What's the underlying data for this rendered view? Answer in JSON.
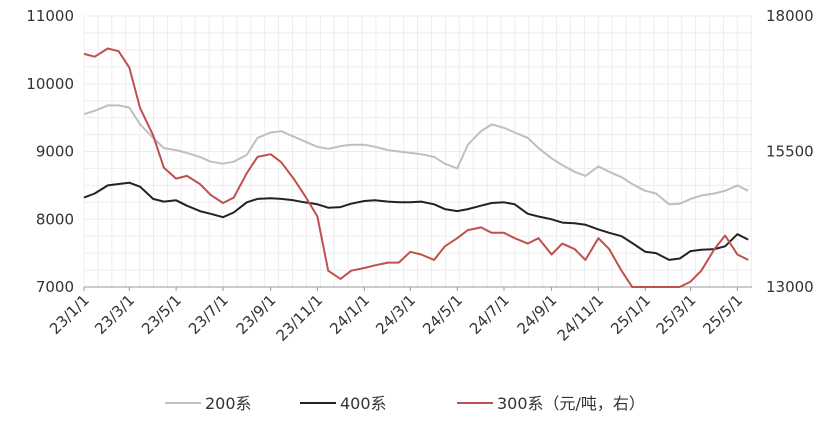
{
  "chart_data": {
    "type": "line",
    "title": "",
    "xlabel": "",
    "ylabel": "",
    "x_ticks": [
      "23/1/1",
      "23/3/1",
      "23/5/1",
      "23/7/1",
      "23/9/1",
      "23/11/1",
      "24/1/1",
      "24/3/1",
      "24/5/1",
      "24/7/1",
      "24/9/1",
      "24/11/1",
      "25/1/1",
      "25/3/1",
      "25/5/1"
    ],
    "ylim_left": [
      7000,
      11000
    ],
    "yticks_left": [
      "7000",
      "8000",
      "9000",
      "10000",
      "11000"
    ],
    "ylim_right": [
      13000,
      18000
    ],
    "yticks_right": [
      "13000",
      "15500",
      "18000"
    ],
    "grid": true,
    "legend_position": "bottom",
    "series": [
      {
        "name": "200系",
        "axis": "left",
        "color": "#bfbfbf",
        "x": [
          "23/1/1",
          "23/1/15",
          "23/2/1",
          "23/2/15",
          "23/3/1",
          "23/3/15",
          "23/4/1",
          "23/4/15",
          "23/5/1",
          "23/5/15",
          "23/6/1",
          "23/6/15",
          "23/7/1",
          "23/7/15",
          "23/8/1",
          "23/8/15",
          "23/9/1",
          "23/9/15",
          "23/10/1",
          "23/10/15",
          "23/11/1",
          "23/11/15",
          "23/12/1",
          "23/12/15",
          "24/1/1",
          "24/1/15",
          "24/2/1",
          "24/2/15",
          "24/3/1",
          "24/3/15",
          "24/4/1",
          "24/4/15",
          "24/5/1",
          "24/5/15",
          "24/6/1",
          "24/6/15",
          "24/7/1",
          "24/7/15",
          "24/8/1",
          "24/8/15",
          "24/9/1",
          "24/9/15",
          "24/10/1",
          "24/10/15",
          "24/11/1",
          "24/11/15",
          "24/12/1",
          "24/12/15",
          "25/1/1",
          "25/1/15",
          "25/2/1",
          "25/2/15",
          "25/3/1",
          "25/3/15",
          "25/4/1",
          "25/4/15",
          "25/5/1",
          "25/5/15"
        ],
        "values": [
          9550,
          9600,
          9680,
          9680,
          9650,
          9400,
          9200,
          9050,
          9020,
          8980,
          8920,
          8850,
          8820,
          8850,
          8950,
          9200,
          9280,
          9300,
          9220,
          9150,
          9070,
          9040,
          9080,
          9100,
          9100,
          9070,
          9020,
          9000,
          8980,
          8960,
          8920,
          8820,
          8750,
          9100,
          9300,
          9400,
          9350,
          9280,
          9200,
          9050,
          8900,
          8800,
          8700,
          8640,
          8780,
          8700,
          8620,
          8520,
          8420,
          8380,
          8220,
          8230,
          8300,
          8350,
          8380,
          8420,
          8500,
          8420
        ]
      },
      {
        "name": "400系",
        "axis": "left",
        "color": "#222222",
        "x": [
          "23/1/1",
          "23/1/15",
          "23/2/1",
          "23/2/15",
          "23/3/1",
          "23/3/15",
          "23/4/1",
          "23/4/15",
          "23/5/1",
          "23/5/15",
          "23/6/1",
          "23/6/15",
          "23/7/1",
          "23/7/15",
          "23/8/1",
          "23/8/15",
          "23/9/1",
          "23/9/15",
          "23/10/1",
          "23/10/15",
          "23/11/1",
          "23/11/15",
          "23/12/1",
          "23/12/15",
          "24/1/1",
          "24/1/15",
          "24/2/1",
          "24/2/15",
          "24/3/1",
          "24/3/15",
          "24/4/1",
          "24/4/15",
          "24/5/1",
          "24/5/15",
          "24/6/1",
          "24/6/15",
          "24/7/1",
          "24/7/15",
          "24/8/1",
          "24/8/15",
          "24/9/1",
          "24/9/15",
          "24/10/1",
          "24/10/15",
          "24/11/1",
          "24/11/15",
          "24/12/1",
          "24/12/15",
          "25/1/1",
          "25/1/15",
          "25/2/1",
          "25/2/15",
          "25/3/1",
          "25/3/15",
          "25/4/1",
          "25/4/15",
          "25/5/1",
          "25/5/15"
        ],
        "values": [
          8320,
          8380,
          8500,
          8520,
          8540,
          8480,
          8300,
          8260,
          8280,
          8200,
          8120,
          8080,
          8030,
          8100,
          8250,
          8300,
          8310,
          8300,
          8280,
          8250,
          8220,
          8170,
          8180,
          8230,
          8270,
          8280,
          8260,
          8250,
          8250,
          8260,
          8220,
          8150,
          8120,
          8150,
          8200,
          8240,
          8250,
          8220,
          8080,
          8040,
          8000,
          7950,
          7940,
          7920,
          7850,
          7800,
          7750,
          7650,
          7520,
          7500,
          7400,
          7420,
          7530,
          7550,
          7560,
          7600,
          7780,
          7700
        ]
      },
      {
        "name": "300系（元/吨，右）",
        "axis": "right",
        "color": "#c0504d",
        "x": [
          "23/1/1",
          "23/1/15",
          "23/2/1",
          "23/2/15",
          "23/3/1",
          "23/3/15",
          "23/4/1",
          "23/4/15",
          "23/5/1",
          "23/5/15",
          "23/6/1",
          "23/6/15",
          "23/7/1",
          "23/7/15",
          "23/8/1",
          "23/8/15",
          "23/9/1",
          "23/9/15",
          "23/10/1",
          "23/10/15",
          "23/11/1",
          "23/11/15",
          "23/12/1",
          "23/12/15",
          "24/1/1",
          "24/1/15",
          "24/2/1",
          "24/2/15",
          "24/3/1",
          "24/3/15",
          "24/4/1",
          "24/4/15",
          "24/5/1",
          "24/5/15",
          "24/6/1",
          "24/6/15",
          "24/7/1",
          "24/7/15",
          "24/8/1",
          "24/8/15",
          "24/9/1",
          "24/9/15",
          "24/10/1",
          "24/10/15",
          "24/11/1",
          "24/11/15",
          "24/12/1",
          "24/12/15",
          "25/1/1",
          "25/1/15",
          "25/2/1",
          "25/2/15",
          "25/3/1",
          "25/3/15",
          "25/4/1",
          "25/4/15",
          "25/5/1",
          "25/5/15"
        ],
        "values": [
          17300,
          17250,
          17400,
          17350,
          17050,
          16300,
          15800,
          15200,
          15000,
          15050,
          14900,
          14700,
          14550,
          14650,
          15100,
          15400,
          15450,
          15300,
          15000,
          14700,
          14300,
          13300,
          13150,
          13300,
          13350,
          13400,
          13450,
          13450,
          13650,
          13600,
          13500,
          13750,
          13900,
          14050,
          14100,
          14000,
          14000,
          13900,
          13800,
          13900,
          13600,
          13800,
          13700,
          13500,
          13900,
          13700,
          13300,
          13000,
          12900,
          12850,
          12700,
          12850,
          13100,
          13300,
          13700,
          13950,
          13600,
          13500
        ]
      }
    ]
  }
}
